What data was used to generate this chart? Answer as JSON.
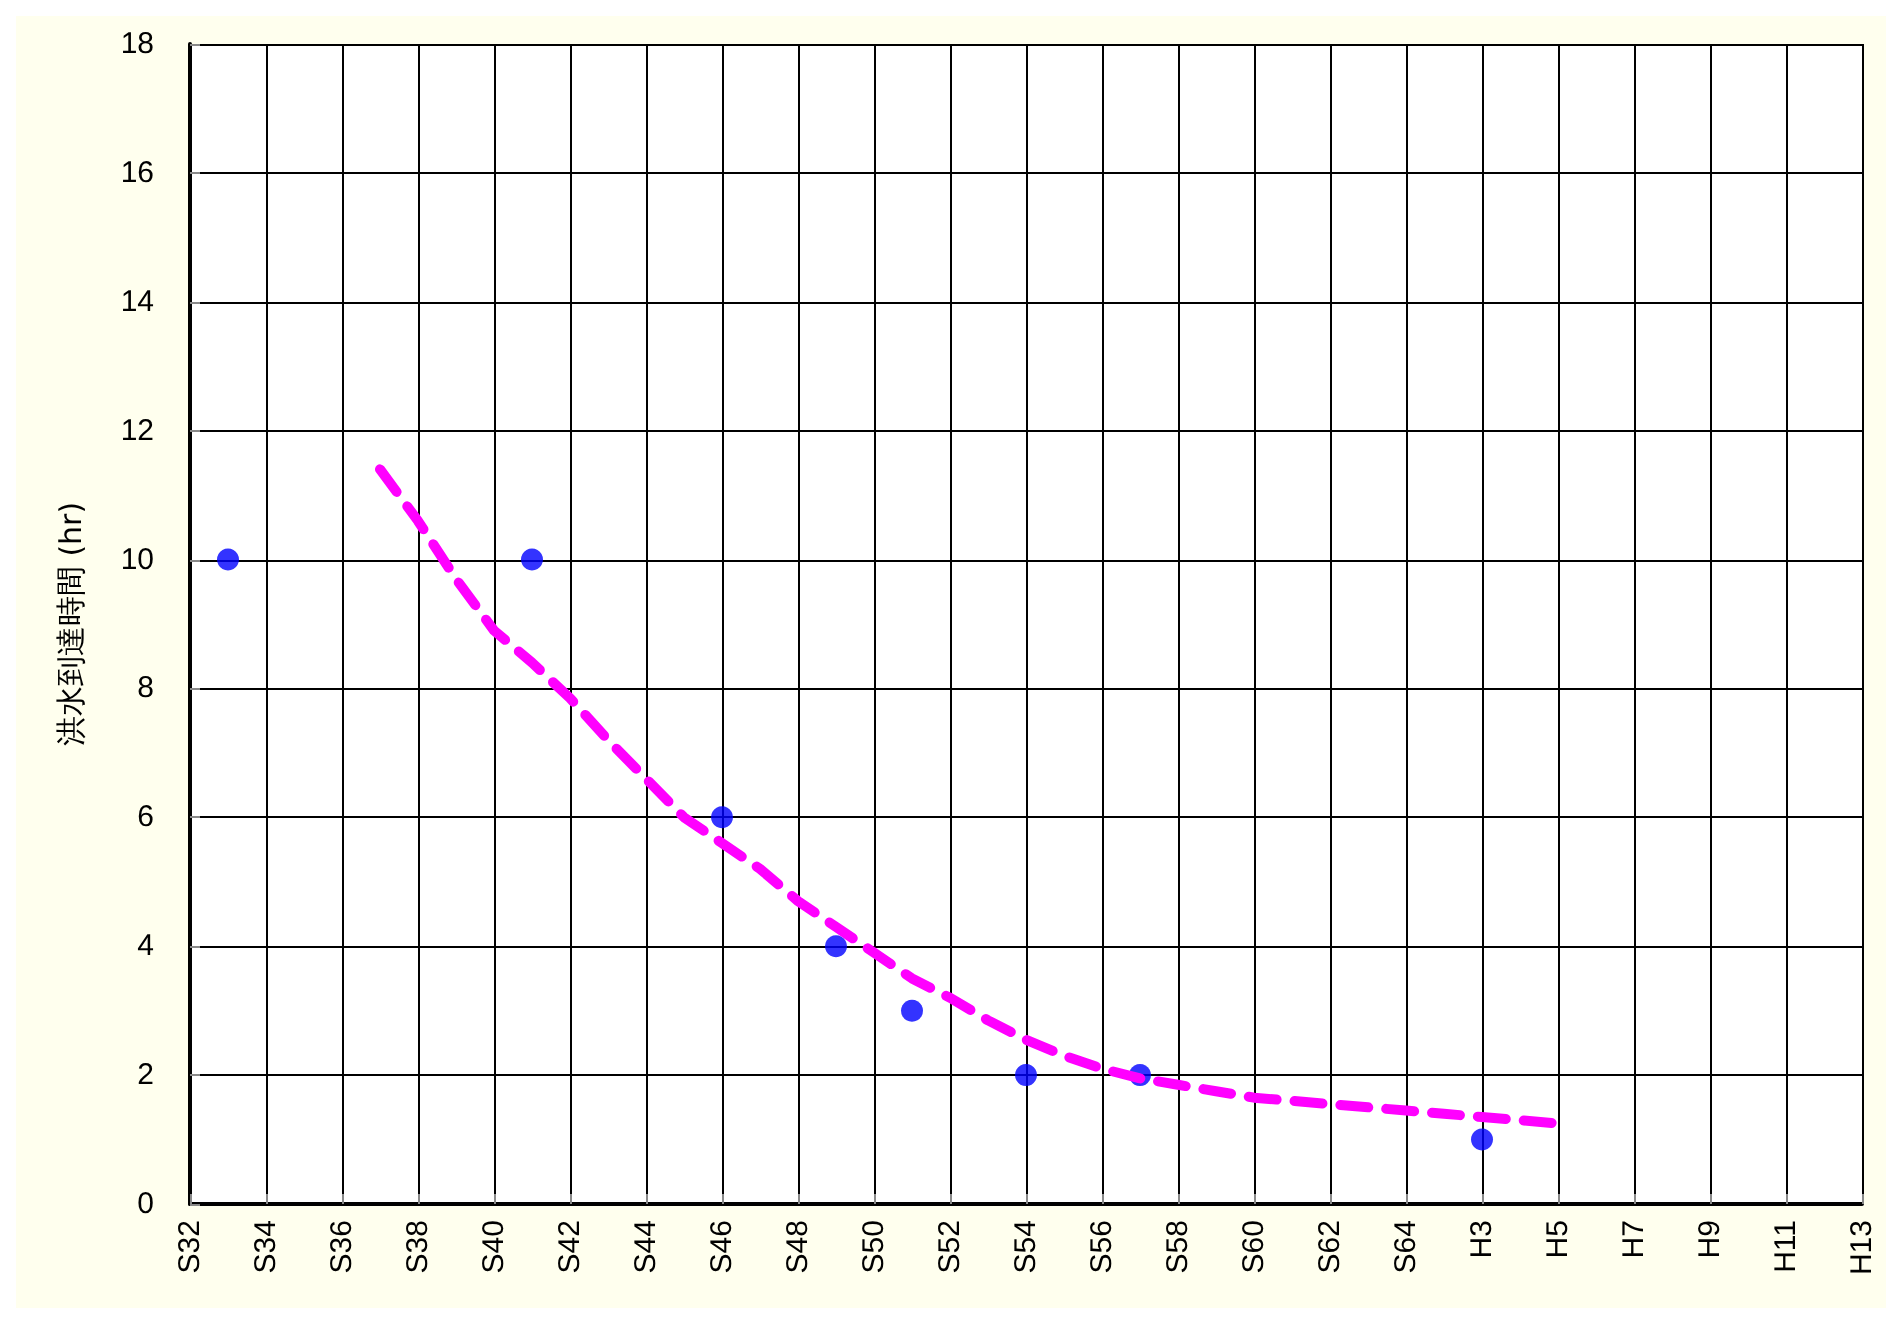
{
  "chart_data": {
    "type": "scatter",
    "ylabel": "洪水到達時間 (hr)",
    "categories": [
      "S32",
      null,
      "S34",
      null,
      "S36",
      null,
      "S38",
      null,
      "S40",
      null,
      "S42",
      null,
      "S44",
      null,
      "S46",
      null,
      "S48",
      null,
      "S50",
      null,
      "S52",
      null,
      "S54",
      null,
      "S56",
      null,
      "S58",
      null,
      "S60",
      null,
      "S62",
      null,
      "S64",
      null,
      "H3",
      null,
      "H5",
      null,
      "H7",
      null,
      "H9",
      null,
      "H11",
      null,
      "H13"
    ],
    "ylim": [
      0,
      18
    ],
    "yticks": [
      0,
      2,
      4,
      6,
      8,
      10,
      12,
      14,
      16,
      18
    ],
    "grid": true,
    "series": [
      {
        "color": "#0000ff",
        "marker": "circle",
        "values": [
          null,
          10,
          null,
          null,
          null,
          null,
          null,
          null,
          null,
          10,
          null,
          null,
          null,
          null,
          6,
          null,
          null,
          4,
          null,
          3,
          null,
          null,
          2,
          null,
          null,
          2,
          null,
          null,
          null,
          null,
          null,
          null,
          null,
          null,
          1,
          null,
          null,
          null,
          null,
          null,
          null,
          null,
          null,
          null,
          null
        ]
      },
      {
        "type": "line",
        "color": "#ff00ff",
        "marker": "none",
        "line_style": "dashed",
        "values": [
          null,
          null,
          null,
          null,
          null,
          11.4,
          10.6,
          9.7,
          8.9,
          8.4,
          7.85,
          7.2,
          6.6,
          6.0,
          5.6,
          5.2,
          4.7,
          4.3,
          3.9,
          3.5,
          3.2,
          2.85,
          2.55,
          2.3,
          2.1,
          1.95,
          1.85,
          1.75,
          1.65,
          1.6,
          1.55,
          1.5,
          1.45,
          1.4,
          1.35,
          1.3,
          1.25,
          null,
          null,
          null,
          null,
          null,
          null,
          null,
          null
        ]
      }
    ]
  }
}
